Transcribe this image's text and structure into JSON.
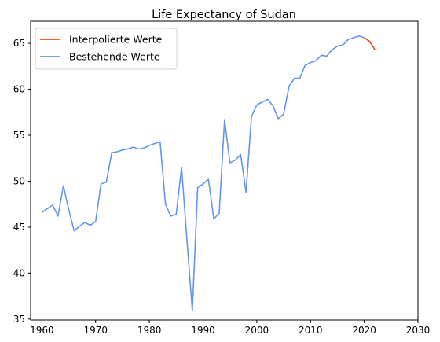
{
  "chart_data": {
    "type": "line",
    "title": "Life Expectancy of Sudan",
    "xlabel": "",
    "ylabel": "",
    "xlim": [
      1957.9,
      2030
    ],
    "ylim": [
      34.9,
      67.4
    ],
    "xticks": [
      1960,
      1970,
      1980,
      1990,
      2000,
      2010,
      2020,
      2030
    ],
    "yticks": [
      35,
      40,
      45,
      50,
      55,
      60,
      65
    ],
    "grid": false,
    "legend_position": "top-left",
    "series": [
      {
        "name": "Interpolierte Werte",
        "color": "#ff4500",
        "x": [
          2020,
          2021,
          2022
        ],
        "y": [
          65.6,
          65.2,
          64.3
        ]
      },
      {
        "name": "Bestehende Werte",
        "color": "#6495ed",
        "x": [
          1960,
          1961,
          1962,
          1963,
          1964,
          1965,
          1966,
          1967,
          1968,
          1969,
          1970,
          1971,
          1972,
          1973,
          1974,
          1975,
          1976,
          1977,
          1978,
          1979,
          1980,
          1981,
          1982,
          1983,
          1984,
          1985,
          1986,
          1987,
          1988,
          1989,
          1990,
          1991,
          1992,
          1993,
          1994,
          1995,
          1996,
          1997,
          1998,
          1999,
          2000,
          2001,
          2002,
          2003,
          2004,
          2005,
          2006,
          2007,
          2008,
          2009,
          2010,
          2011,
          2012,
          2013,
          2014,
          2015,
          2016,
          2017,
          2018,
          2019,
          2020
        ],
        "y": [
          46.6,
          47.0,
          47.4,
          46.2,
          49.5,
          46.9,
          44.6,
          45.1,
          45.5,
          45.2,
          45.6,
          49.7,
          49.9,
          53.1,
          53.2,
          53.4,
          53.5,
          53.7,
          53.5,
          53.6,
          53.9,
          54.1,
          54.3,
          47.5,
          46.2,
          46.4,
          51.5,
          43.6,
          35.9,
          49.3,
          49.7,
          50.2,
          45.9,
          46.5,
          56.7,
          52.0,
          52.3,
          52.9,
          48.8,
          57.0,
          58.3,
          58.6,
          58.9,
          58.2,
          56.8,
          57.3,
          60.3,
          61.2,
          61.2,
          62.6,
          62.9,
          63.1,
          63.7,
          63.6,
          64.3,
          64.7,
          64.8,
          65.4,
          65.6,
          65.8,
          65.6
        ]
      }
    ]
  }
}
